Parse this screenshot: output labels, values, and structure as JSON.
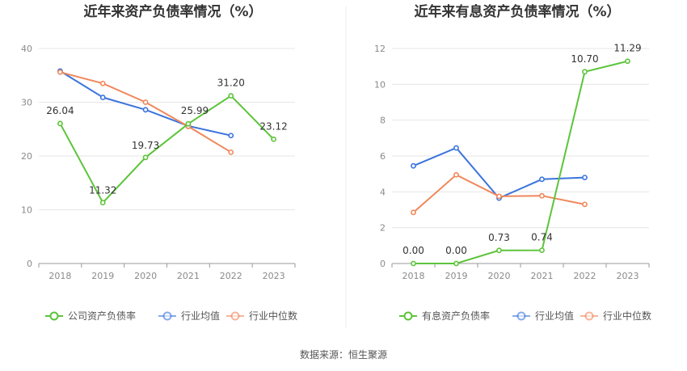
{
  "charts": [
    {
      "title": "近年来资产负债率情况（%）",
      "chart_data": {
        "type": "line",
        "categories": [
          "2018",
          "2019",
          "2020",
          "2021",
          "2022",
          "2023"
        ],
        "ylim": [
          0,
          40
        ],
        "yticks": [
          0,
          10,
          20,
          30,
          40
        ],
        "grid": true,
        "legend_position": "bottom",
        "series": [
          {
            "name": "公司资产负债率",
            "color": "#5cc43a",
            "values": [
              26.04,
              11.32,
              19.73,
              25.99,
              31.2,
              23.12
            ],
            "labels": [
              "26.04",
              "11.32",
              "19.73",
              "25.99",
              "31.20",
              "23.12"
            ]
          },
          {
            "name": "行业均值",
            "color": "#3b74dc",
            "values": [
              35.8,
              30.9,
              28.6,
              25.6,
              23.8,
              null
            ]
          },
          {
            "name": "行业中位数",
            "color": "#f0875a",
            "values": [
              35.6,
              33.5,
              30.0,
              25.5,
              20.7,
              null
            ]
          }
        ]
      }
    },
    {
      "title": "近年来有息资产负债率情况（%）",
      "chart_data": {
        "type": "line",
        "categories": [
          "2018",
          "2019",
          "2020",
          "2021",
          "2022",
          "2023"
        ],
        "ylim": [
          0,
          12
        ],
        "yticks": [
          0,
          2,
          4,
          6,
          8,
          10,
          12
        ],
        "grid": true,
        "legend_position": "bottom",
        "series": [
          {
            "name": "有息资产负债率",
            "color": "#5cc43a",
            "values": [
              0.0,
              0.0,
              0.73,
              0.74,
              10.7,
              11.29
            ],
            "labels": [
              "0.00",
              "0.00",
              "0.73",
              "0.74",
              "10.70",
              "11.29"
            ]
          },
          {
            "name": "行业均值",
            "color": "#3b74dc",
            "values": [
              5.45,
              6.45,
              3.65,
              4.7,
              4.8,
              null
            ]
          },
          {
            "name": "行业中位数",
            "color": "#f0875a",
            "values": [
              2.85,
              4.95,
              3.75,
              3.78,
              3.3,
              null
            ]
          }
        ]
      }
    }
  ],
  "source_text": "数据来源：恒生聚源"
}
